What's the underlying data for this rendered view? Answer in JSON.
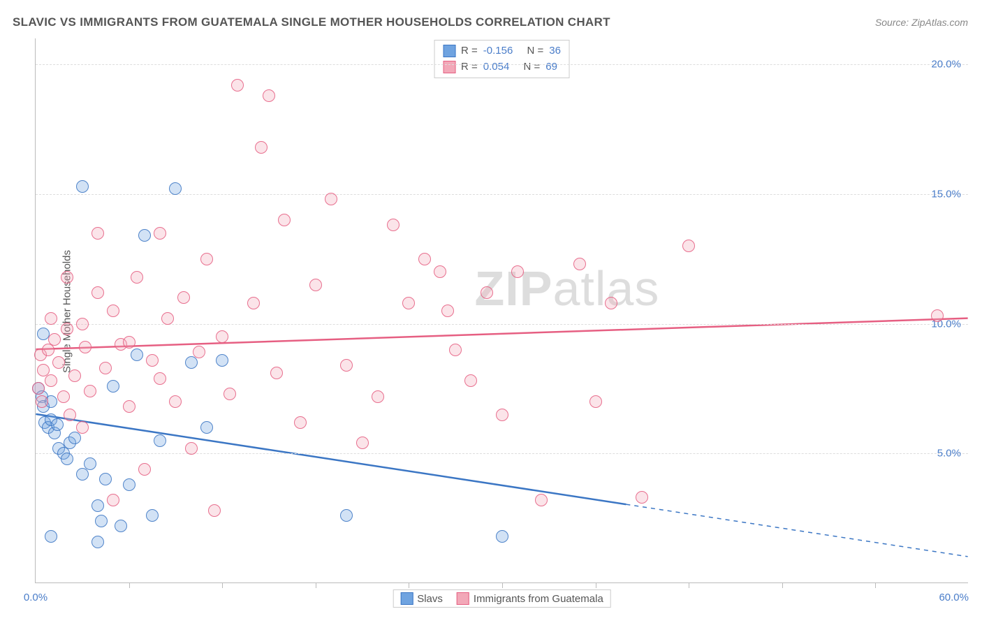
{
  "title": "SLAVIC VS IMMIGRANTS FROM GUATEMALA SINGLE MOTHER HOUSEHOLDS CORRELATION CHART",
  "source": "Source: ZipAtlas.com",
  "ylabel": "Single Mother Households",
  "watermark_bold": "ZIP",
  "watermark_rest": "atlas",
  "chart": {
    "type": "scatter",
    "background_color": "#ffffff",
    "grid_color": "#dddddd",
    "axis_color": "#bbbbbb",
    "tick_label_color": "#4a7dc9",
    "xlim": [
      0,
      60
    ],
    "ylim": [
      0,
      21
    ],
    "y_ticks": [
      {
        "v": 5,
        "label": "5.0%"
      },
      {
        "v": 10,
        "label": "10.0%"
      },
      {
        "v": 15,
        "label": "15.0%"
      },
      {
        "v": 20,
        "label": "20.0%"
      }
    ],
    "x_ticks_minor": [
      6,
      12,
      18,
      24,
      30,
      36,
      42,
      48,
      54
    ],
    "x_tick_labels": [
      {
        "v": 0,
        "label": "0.0%"
      },
      {
        "v": 60,
        "label": "60.0%"
      }
    ],
    "marker_radius": 9,
    "marker_stroke_width": 1.5,
    "marker_fill_opacity": 0.35
  },
  "series": [
    {
      "id": "slavs",
      "label": "Slavs",
      "color": "#6fa3e0",
      "stroke": "#3b76c4",
      "R_label": "R =",
      "R": "-0.156",
      "N_label": "N =",
      "N": "36",
      "trend": {
        "x1": 0,
        "y1": 6.5,
        "x2": 60,
        "y2": 1.0,
        "solid_until_x": 38,
        "width": 2.5
      },
      "points": [
        [
          0.2,
          7.5
        ],
        [
          0.4,
          7.2
        ],
        [
          0.5,
          6.8
        ],
        [
          0.6,
          6.2
        ],
        [
          0.8,
          6.0
        ],
        [
          1.0,
          6.3
        ],
        [
          1.2,
          5.8
        ],
        [
          1.4,
          6.1
        ],
        [
          1.0,
          7.0
        ],
        [
          1.5,
          5.2
        ],
        [
          1.8,
          5.0
        ],
        [
          2.0,
          4.8
        ],
        [
          2.2,
          5.4
        ],
        [
          2.5,
          5.6
        ],
        [
          3.0,
          4.2
        ],
        [
          3.5,
          4.6
        ],
        [
          3.0,
          15.3
        ],
        [
          4.0,
          3.0
        ],
        [
          4.2,
          2.4
        ],
        [
          4.5,
          4.0
        ],
        [
          5.0,
          7.6
        ],
        [
          5.5,
          2.2
        ],
        [
          6.0,
          3.8
        ],
        [
          6.5,
          8.8
        ],
        [
          7.0,
          13.4
        ],
        [
          7.5,
          2.6
        ],
        [
          8.0,
          5.5
        ],
        [
          9.0,
          15.2
        ],
        [
          10.0,
          8.5
        ],
        [
          11.0,
          6.0
        ],
        [
          12.0,
          8.6
        ],
        [
          20.0,
          2.6
        ],
        [
          30.0,
          1.8
        ],
        [
          1.0,
          1.8
        ],
        [
          4.0,
          1.6
        ],
        [
          0.5,
          9.6
        ]
      ]
    },
    {
      "id": "guatemala",
      "label": "Immigrants from Guatemala",
      "color": "#f2a8b8",
      "stroke": "#e65f82",
      "R_label": "R =",
      "R": "0.054",
      "N_label": "N =",
      "N": "69",
      "trend": {
        "x1": 0,
        "y1": 9.0,
        "x2": 60,
        "y2": 10.2,
        "solid_until_x": 60,
        "width": 2.5
      },
      "points": [
        [
          0.3,
          8.8
        ],
        [
          0.5,
          8.2
        ],
        [
          0.8,
          9.0
        ],
        [
          1.0,
          7.8
        ],
        [
          1.2,
          9.4
        ],
        [
          1.5,
          8.5
        ],
        [
          1.8,
          7.2
        ],
        [
          2.0,
          9.8
        ],
        [
          2.2,
          6.5
        ],
        [
          2.5,
          8.0
        ],
        [
          3.0,
          10.0
        ],
        [
          3.2,
          9.1
        ],
        [
          3.5,
          7.4
        ],
        [
          4.0,
          11.2
        ],
        [
          4.5,
          8.3
        ],
        [
          5.0,
          10.5
        ],
        [
          5.5,
          9.2
        ],
        [
          6.0,
          6.8
        ],
        [
          6.5,
          11.8
        ],
        [
          7.0,
          4.4
        ],
        [
          7.5,
          8.6
        ],
        [
          8.0,
          13.5
        ],
        [
          8.5,
          10.2
        ],
        [
          9.0,
          7.0
        ],
        [
          9.5,
          11.0
        ],
        [
          10.0,
          5.2
        ],
        [
          10.5,
          8.9
        ],
        [
          11.0,
          12.5
        ],
        [
          11.5,
          2.8
        ],
        [
          12.0,
          9.5
        ],
        [
          12.5,
          7.3
        ],
        [
          13.0,
          19.2
        ],
        [
          14.0,
          10.8
        ],
        [
          14.5,
          16.8
        ],
        [
          15.0,
          18.8
        ],
        [
          15.5,
          8.1
        ],
        [
          16.0,
          14.0
        ],
        [
          17.0,
          6.2
        ],
        [
          18.0,
          11.5
        ],
        [
          19.0,
          14.8
        ],
        [
          20.0,
          8.4
        ],
        [
          21.0,
          5.4
        ],
        [
          22.0,
          7.2
        ],
        [
          23.0,
          13.8
        ],
        [
          24.0,
          10.8
        ],
        [
          25.0,
          12.5
        ],
        [
          26.0,
          12.0
        ],
        [
          26.5,
          10.5
        ],
        [
          27.0,
          9.0
        ],
        [
          28.0,
          7.8
        ],
        [
          29.0,
          11.2
        ],
        [
          30.0,
          6.5
        ],
        [
          31.0,
          12.0
        ],
        [
          32.5,
          3.2
        ],
        [
          35.0,
          12.3
        ],
        [
          36.0,
          7.0
        ],
        [
          37.0,
          10.8
        ],
        [
          42.0,
          13.0
        ],
        [
          39.0,
          3.3
        ],
        [
          2.0,
          11.8
        ],
        [
          4.0,
          13.5
        ],
        [
          6.0,
          9.3
        ],
        [
          8.0,
          7.9
        ],
        [
          1.0,
          10.2
        ],
        [
          3.0,
          6.0
        ],
        [
          5.0,
          3.2
        ],
        [
          58.0,
          10.3
        ],
        [
          0.2,
          7.5
        ],
        [
          0.4,
          7.0
        ]
      ]
    }
  ]
}
